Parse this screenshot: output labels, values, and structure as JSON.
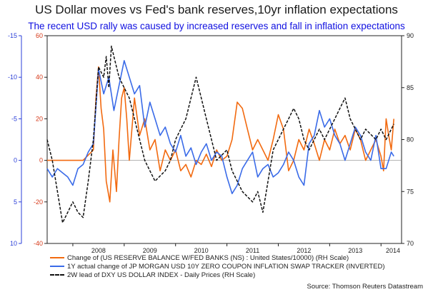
{
  "title": "US Dollar moves vs Fed's bank reserves,10yr inflation expectations",
  "subtitle": "The recent USD rally was caused by increased reserves and fall in inflation expectations",
  "source": "Source: Thomson Reuters Datastream",
  "colors": {
    "reserves": "#f26a10",
    "inflation": "#3a6be8",
    "dxy": "#111111",
    "inner_axis_text": "#d63a1a",
    "outer_axis_text": "#2b3fd8",
    "title_text": "#1a1a1a",
    "subtitle_text": "#1010e0"
  },
  "chart_data": {
    "type": "line",
    "x_axis": {
      "ticks": [
        "2008",
        "2009",
        "2010",
        "2011",
        "2012",
        "2013",
        "2014"
      ],
      "range": [
        2007.5,
        2014.4
      ]
    },
    "left_outer_axis": {
      "ticks": [
        "-15",
        "-10",
        "-5",
        "0",
        "5",
        "10"
      ],
      "range": [
        -15,
        10
      ],
      "inverted": true
    },
    "left_inner_axis": {
      "ticks": [
        "60",
        "40",
        "20",
        "0",
        "-20",
        "-40"
      ],
      "range": [
        -40,
        60
      ]
    },
    "right_axis": {
      "ticks": [
        "90",
        "85",
        "80",
        "75",
        "70"
      ],
      "range": [
        70,
        90
      ]
    },
    "grid": false,
    "legend_position": "bottom",
    "series": [
      {
        "name": "Change of (US RESERVE BALANCE W/FED BANKS (NS) : United States/10000) (RH Scale)",
        "axis": "left_inner",
        "style": "solid",
        "x": [
          2007.5,
          2007.8,
          2008.2,
          2008.4,
          2008.45,
          2008.5,
          2008.55,
          2008.6,
          2008.65,
          2008.72,
          2008.78,
          2008.85,
          2008.9,
          2008.95,
          2009.0,
          2009.05,
          2009.1,
          2009.15,
          2009.2,
          2009.3,
          2009.4,
          2009.5,
          2009.6,
          2009.7,
          2009.8,
          2009.9,
          2010.0,
          2010.1,
          2010.2,
          2010.3,
          2010.4,
          2010.5,
          2010.6,
          2010.7,
          2010.8,
          2010.9,
          2011.0,
          2011.1,
          2011.2,
          2011.3,
          2011.4,
          2011.5,
          2011.6,
          2011.7,
          2011.8,
          2011.9,
          2012.0,
          2012.1,
          2012.2,
          2012.3,
          2012.4,
          2012.5,
          2012.6,
          2012.7,
          2012.8,
          2012.9,
          2013.0,
          2013.1,
          2013.2,
          2013.3,
          2013.4,
          2013.5,
          2013.6,
          2013.7,
          2013.8,
          2013.9,
          2014.0,
          2014.05,
          2014.1,
          2014.15,
          2014.2,
          2014.25
        ],
        "y": [
          0,
          0,
          0,
          5,
          30,
          45,
          25,
          15,
          -10,
          -20,
          5,
          -15,
          10,
          30,
          35,
          20,
          0,
          15,
          30,
          12,
          20,
          5,
          10,
          -5,
          5,
          0,
          5,
          -5,
          -2,
          -8,
          0,
          -2,
          3,
          -3,
          5,
          0,
          2,
          10,
          28,
          25,
          15,
          5,
          10,
          5,
          0,
          10,
          22,
          15,
          -5,
          0,
          10,
          5,
          15,
          8,
          0,
          10,
          5,
          15,
          8,
          12,
          5,
          15,
          10,
          0,
          5,
          10,
          2,
          -5,
          20,
          12,
          5,
          20
        ]
      },
      {
        "name": "1Y actual change of JP MORGAN USD 10Y ZERO COUPON INFLATION SWAP TRACKER (INVERTED)",
        "axis": "left_outer",
        "style": "solid",
        "x": [
          2007.5,
          2007.6,
          2007.7,
          2007.8,
          2007.9,
          2008.0,
          2008.1,
          2008.2,
          2008.3,
          2008.4,
          2008.5,
          2008.6,
          2008.7,
          2008.8,
          2008.9,
          2009.0,
          2009.1,
          2009.2,
          2009.3,
          2009.4,
          2009.5,
          2009.6,
          2009.7,
          2009.8,
          2009.9,
          2010.0,
          2010.1,
          2010.2,
          2010.3,
          2010.4,
          2010.5,
          2010.6,
          2010.7,
          2010.8,
          2010.9,
          2011.0,
          2011.1,
          2011.2,
          2011.3,
          2011.4,
          2011.5,
          2011.6,
          2011.7,
          2011.8,
          2011.9,
          2012.0,
          2012.1,
          2012.2,
          2012.3,
          2012.4,
          2012.5,
          2012.6,
          2012.7,
          2012.8,
          2012.9,
          2013.0,
          2013.1,
          2013.2,
          2013.3,
          2013.4,
          2013.5,
          2013.6,
          2013.7,
          2013.8,
          2013.9,
          2014.0,
          2014.1,
          2014.2,
          2014.25
        ],
        "y": [
          1,
          2,
          1,
          1.5,
          2,
          3,
          1,
          0.5,
          -1,
          -2,
          -11,
          -8,
          -10,
          -6,
          -9,
          -12,
          -10,
          -8,
          -9,
          -4,
          -7,
          -5,
          -3,
          -4,
          -2,
          -1,
          -3,
          -0.5,
          -1.5,
          0.5,
          -1,
          -2,
          0,
          -1,
          -0.5,
          2,
          4,
          3,
          1,
          0,
          -1,
          2,
          1,
          0.5,
          2,
          1.5,
          0.5,
          -1,
          0,
          2,
          3,
          -2,
          -3,
          -6,
          -4,
          -5,
          -3,
          -2,
          0,
          -2,
          -4,
          -3,
          -1,
          0,
          -3,
          1,
          1,
          -1,
          -0.5
        ]
      },
      {
        "name": "2W lead of DXY US DOLLAR INDEX - Daily Prices (RH Scale)",
        "axis": "right",
        "style": "dashed",
        "x": [
          2007.5,
          2007.6,
          2007.7,
          2007.8,
          2007.9,
          2008.0,
          2008.1,
          2008.2,
          2008.3,
          2008.4,
          2008.5,
          2008.6,
          2008.65,
          2008.7,
          2008.75,
          2008.8,
          2008.9,
          2009.0,
          2009.1,
          2009.2,
          2009.3,
          2009.4,
          2009.5,
          2009.6,
          2009.7,
          2009.8,
          2009.9,
          2010.0,
          2010.1,
          2010.2,
          2010.3,
          2010.4,
          2010.5,
          2010.6,
          2010.7,
          2010.8,
          2010.9,
          2011.0,
          2011.1,
          2011.2,
          2011.3,
          2011.4,
          2011.5,
          2011.6,
          2011.7,
          2011.8,
          2011.9,
          2012.0,
          2012.1,
          2012.2,
          2012.3,
          2012.4,
          2012.5,
          2012.6,
          2012.7,
          2012.8,
          2012.9,
          2013.0,
          2013.1,
          2013.2,
          2013.3,
          2013.4,
          2013.5,
          2013.6,
          2013.7,
          2013.8,
          2013.9,
          2014.0,
          2014.1,
          2014.2,
          2014.25
        ],
        "y": [
          80,
          78,
          75,
          72,
          73,
          74,
          73,
          72.5,
          76,
          80,
          87,
          86,
          88,
          85,
          89,
          88,
          86,
          85,
          84,
          82,
          80,
          78,
          77,
          76,
          76.5,
          77,
          78,
          80,
          81,
          82,
          84,
          86,
          84,
          82,
          80,
          78,
          78.5,
          79,
          77,
          76,
          75,
          74.5,
          74,
          75,
          73,
          76,
          79,
          80,
          81,
          82,
          83,
          82,
          80,
          79,
          80,
          81,
          80,
          81,
          82,
          83,
          84,
          82,
          81,
          80,
          81,
          80.5,
          80,
          81,
          80,
          81,
          81.5
        ]
      }
    ]
  }
}
